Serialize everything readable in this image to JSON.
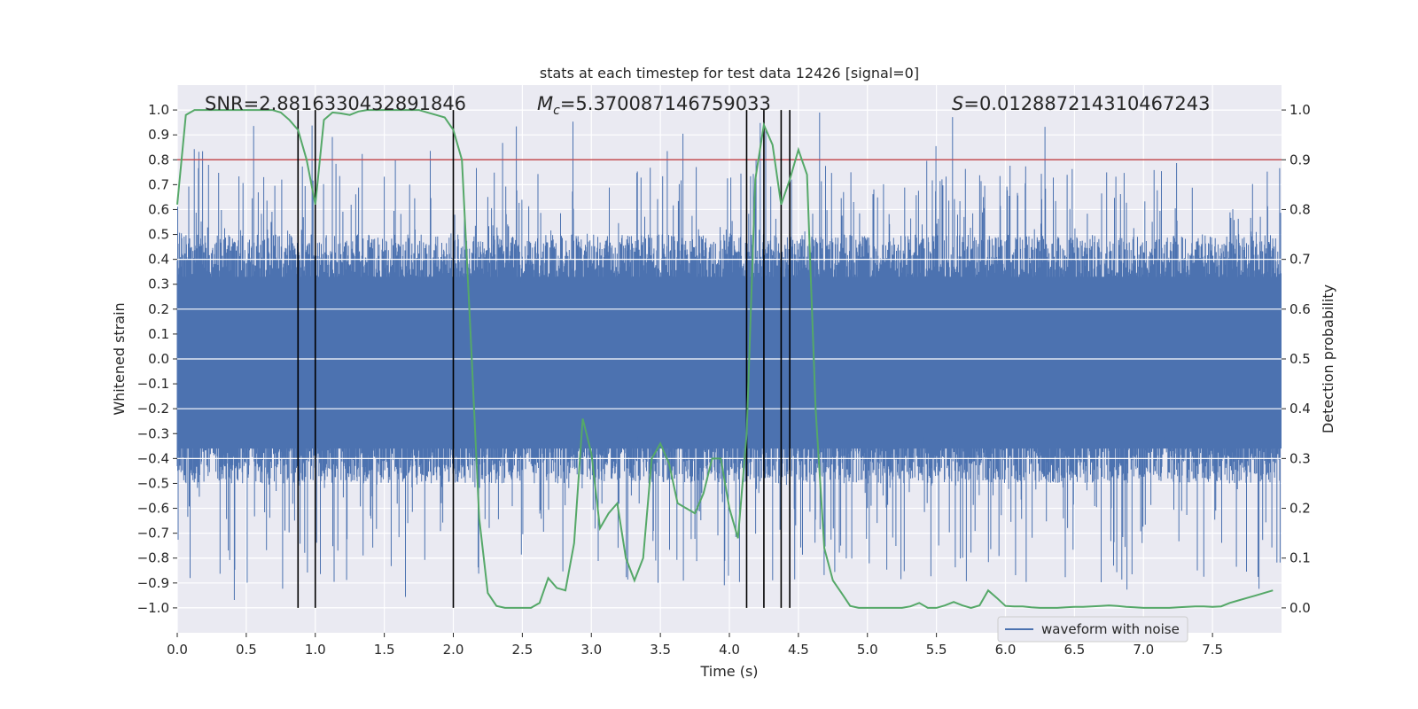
{
  "chart_data": {
    "type": "line",
    "title": "stats at each timestep for test data 12426 [signal=0]",
    "xlabel": "Time (s)",
    "ylabel_left": "Whitened strain",
    "ylabel_right": "Detection probability",
    "xlim": [
      0.0,
      8.0
    ],
    "ylim_left": [
      -1.1,
      1.1
    ],
    "ylim_right": [
      -0.05,
      1.05
    ],
    "x_ticks": [
      0.0,
      0.5,
      1.0,
      1.5,
      2.0,
      2.5,
      3.0,
      3.5,
      4.0,
      4.5,
      5.0,
      5.5,
      6.0,
      6.5,
      7.0,
      7.5
    ],
    "x_tick_labels": [
      "0.0",
      "0.5",
      "1.0",
      "1.5",
      "2.0",
      "2.5",
      "3.0",
      "3.5",
      "4.0",
      "4.5",
      "5.0",
      "5.5",
      "6.0",
      "6.5",
      "7.0",
      "7.5"
    ],
    "y_left_ticks": [
      1.0,
      0.9,
      0.8,
      0.7,
      0.6,
      0.5,
      0.4,
      0.3,
      0.2,
      0.1,
      0.0,
      -0.1,
      -0.2,
      -0.3,
      -0.4,
      -0.5,
      -0.6,
      -0.7,
      -0.8,
      -0.9,
      -1.0
    ],
    "y_left_tick_labels": [
      "1.0",
      "0.9",
      "0.8",
      "0.7",
      "0.6",
      "0.5",
      "0.4",
      "0.3",
      "0.2",
      "0.1",
      "0.0",
      "−0.1",
      "−0.2",
      "−0.3",
      "−0.4",
      "−0.5",
      "−0.6",
      "−0.7",
      "−0.8",
      "−0.9",
      "−1.0"
    ],
    "y_right_ticks": [
      1.0,
      0.9,
      0.8,
      0.7,
      0.6,
      0.5,
      0.4,
      0.3,
      0.2,
      0.1,
      0.0
    ],
    "y_right_tick_labels": [
      "1.0",
      "0.9",
      "0.8",
      "0.7",
      "0.6",
      "0.5",
      "0.4",
      "0.3",
      "0.2",
      "0.1",
      "0.0"
    ],
    "threshold": 0.9,
    "annotations": {
      "snr": "SNR=2.8816330432891846",
      "mc_symbol": "M",
      "mc_sub": "c",
      "mc_value": "=5.370087146759033",
      "s_symbol": "S",
      "s_value": "=0.012887214310467243"
    },
    "vertical_lines": [
      0.875,
      1.0,
      2.0,
      4.125,
      4.25,
      4.375,
      4.4375
    ],
    "legend": "waveform with noise",
    "series": [
      {
        "name": "waveform with noise",
        "axis": "left",
        "description": "noisy whitened strain, amplitude ~±0.35 core with spikes up to ±1.0",
        "color": "#4c72b0"
      },
      {
        "name": "detection probability",
        "axis": "right",
        "color": "#55a868",
        "x": [
          0.0,
          0.0625,
          0.125,
          0.1875,
          0.25,
          0.3125,
          0.375,
          0.4375,
          0.5,
          0.5625,
          0.625,
          0.6875,
          0.75,
          0.8125,
          0.875,
          0.9375,
          1.0,
          1.0625,
          1.125,
          1.1875,
          1.25,
          1.3125,
          1.375,
          1.4375,
          1.5,
          1.5625,
          1.625,
          1.6875,
          1.75,
          1.8125,
          1.875,
          1.9375,
          2.0,
          2.0625,
          2.125,
          2.1875,
          2.25,
          2.3125,
          2.375,
          2.4375,
          2.5,
          2.5625,
          2.625,
          2.6875,
          2.75,
          2.8125,
          2.875,
          2.9375,
          3.0,
          3.0625,
          3.125,
          3.1875,
          3.25,
          3.3125,
          3.375,
          3.4375,
          3.5,
          3.5625,
          3.625,
          3.6875,
          3.75,
          3.8125,
          3.875,
          3.9375,
          4.0,
          4.0625,
          4.125,
          4.1875,
          4.25,
          4.3125,
          4.375,
          4.4375,
          4.5,
          4.5625,
          4.625,
          4.6875,
          4.75,
          4.8125,
          4.875,
          4.9375,
          5.0,
          5.0625,
          5.125,
          5.1875,
          5.25,
          5.3125,
          5.375,
          5.4375,
          5.5,
          5.5625,
          5.625,
          5.6875,
          5.75,
          5.8125,
          5.875,
          5.9375,
          6.0,
          6.0625,
          6.125,
          6.1875,
          6.25,
          6.3125,
          6.375,
          6.4375,
          6.5,
          6.5625,
          6.625,
          6.6875,
          6.75,
          6.8125,
          6.875,
          6.9375,
          7.0,
          7.0625,
          7.125,
          7.1875,
          7.25,
          7.3125,
          7.375,
          7.4375,
          7.5,
          7.5625,
          7.625,
          7.6875,
          7.75,
          7.8125,
          7.875,
          7.9375
        ],
        "values": [
          0.81,
          0.99,
          1.0,
          1.0,
          1.0,
          1.0,
          1.0,
          1.0,
          1.0,
          1.0,
          1.0,
          1.0,
          0.995,
          0.98,
          0.96,
          0.9,
          0.81,
          0.98,
          0.995,
          0.993,
          0.99,
          0.997,
          1.0,
          1.0,
          1.0,
          1.0,
          1.0,
          1.0,
          1.0,
          0.995,
          0.99,
          0.985,
          0.96,
          0.9,
          0.55,
          0.18,
          0.03,
          0.004,
          0.0,
          0.0,
          0.0,
          0.0,
          0.01,
          0.06,
          0.04,
          0.035,
          0.13,
          0.38,
          0.31,
          0.16,
          0.19,
          0.21,
          0.1,
          0.055,
          0.1,
          0.3,
          0.33,
          0.29,
          0.21,
          0.2,
          0.19,
          0.23,
          0.3,
          0.3,
          0.2,
          0.14,
          0.35,
          0.86,
          0.97,
          0.93,
          0.81,
          0.86,
          0.92,
          0.87,
          0.4,
          0.12,
          0.055,
          0.03,
          0.004,
          0.0,
          0.0,
          0.0,
          0.0,
          0.0,
          0.0,
          0.003,
          0.01,
          0.0,
          0.0,
          0.005,
          0.012,
          0.005,
          0.0,
          0.005,
          0.035,
          0.02,
          0.004,
          0.003,
          0.003,
          0.001,
          0.0,
          0.0,
          0.0,
          0.001,
          0.002,
          0.002,
          0.003,
          0.004,
          0.005,
          0.004,
          0.002,
          0.001,
          0.0,
          0.0,
          0.0,
          0.0,
          0.001,
          0.002,
          0.003,
          0.003,
          0.002,
          0.003,
          0.01,
          0.015,
          0.02,
          0.025,
          0.03,
          0.035
        ]
      }
    ]
  }
}
